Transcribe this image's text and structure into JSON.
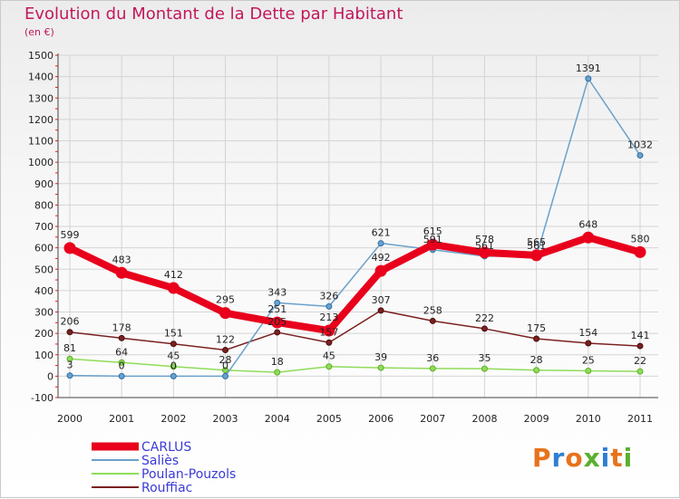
{
  "title": "Evolution du Montant de la Dette par Habitant",
  "subtitle": "(en €)",
  "logo": {
    "text": "Proxiti",
    "colors": [
      "#e8721c",
      "#2f7fd1",
      "#e8721c",
      "#5ab02e",
      "#2f7fd1",
      "#e8721c",
      "#5ab02e"
    ]
  },
  "chart_data": {
    "type": "line",
    "title": "Evolution du Montant de la Dette par Habitant",
    "subtitle": "(en €)",
    "xlabel": "",
    "ylabel": "",
    "x": [
      "2000",
      "2001",
      "2002",
      "2003",
      "2004",
      "2005",
      "2006",
      "2007",
      "2008",
      "2009",
      "2010",
      "2011"
    ],
    "ylim": [
      -100,
      1500
    ],
    "yticks": [
      -100,
      0,
      100,
      200,
      300,
      400,
      500,
      600,
      700,
      800,
      900,
      1000,
      1100,
      1200,
      1300,
      1400,
      1500
    ],
    "grid": true,
    "legend_position": "bottom-left",
    "series": [
      {
        "name": "CARLUS",
        "color": "#e8001c",
        "values": [
          599,
          483,
          412,
          295,
          251,
          213,
          492,
          615,
          578,
          565,
          648,
          580
        ]
      },
      {
        "name": "Saliès",
        "color": "#6aa1cc",
        "values": [
          3,
          0,
          0,
          0,
          343,
          326,
          621,
          591,
          561,
          561,
          1391,
          1032
        ]
      },
      {
        "name": "Poulan-Pouzols",
        "color": "#8fdc5a",
        "values": [
          81,
          64,
          45,
          28,
          18,
          45,
          39,
          36,
          35,
          28,
          25,
          22
        ]
      },
      {
        "name": "Rouffiac",
        "color": "#7a2020",
        "values": [
          206,
          178,
          151,
          122,
          205,
          157,
          307,
          258,
          222,
          175,
          154,
          141
        ]
      }
    ]
  }
}
